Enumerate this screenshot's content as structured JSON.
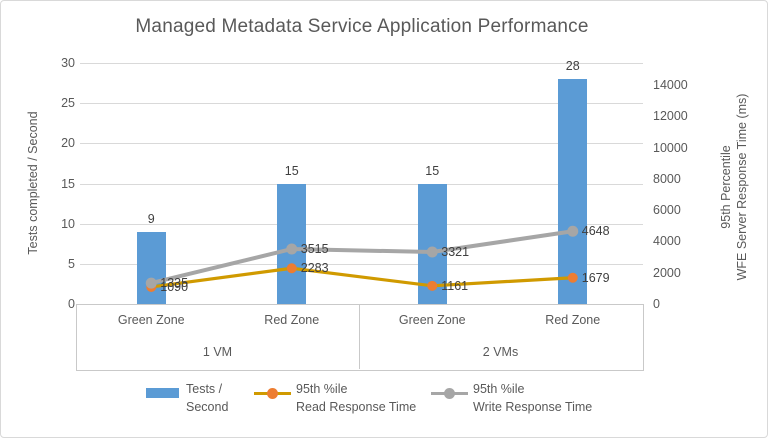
{
  "chart_data": {
    "type": "combo",
    "title": "Managed Metadata Service Application Performance",
    "ylabel_left": "Tests completed / Second",
    "ylabel_right_lines": [
      "95th Percentile",
      "WFE Server Response Time (ms)"
    ],
    "ylim_left": [
      0,
      30
    ],
    "yticks_left": [
      0,
      5,
      10,
      15,
      20,
      25,
      30
    ],
    "ylim_right": [
      0,
      15400
    ],
    "yticks_right": [
      0,
      2000,
      4000,
      6000,
      8000,
      10000,
      12000,
      14000
    ],
    "grid": "horizontal",
    "legend_position": "bottom",
    "category_groups": [
      {
        "label": "1 VM",
        "categories": [
          "Green Zone",
          "Red Zone"
        ]
      },
      {
        "label": "2 VMs",
        "categories": [
          "Green Zone",
          "Red Zone"
        ]
      }
    ],
    "series": [
      {
        "name": "Tests / Second",
        "type": "bar",
        "axis": "left",
        "color": "#5B9BD5",
        "values": [
          9,
          15,
          15,
          28
        ]
      },
      {
        "name": "95th %ile Read Response Time",
        "type": "line",
        "axis": "right",
        "color": "#D09A00",
        "marker_color": "#ED7D31",
        "values": [
          1090,
          2283,
          1161,
          1679
        ]
      },
      {
        "name": "95th %ile Write Response Time",
        "type": "line",
        "axis": "right",
        "color": "#A6A6A6",
        "marker_color": "#A6A6A6",
        "values": [
          1335,
          3515,
          3321,
          4648
        ]
      }
    ],
    "legend_entries": [
      {
        "swatch": "bar",
        "color": "#5B9BD5",
        "lines": [
          "Tests /",
          "Second"
        ]
      },
      {
        "swatch": "line-marker",
        "color": "#D09A00",
        "marker_color": "#ED7D31",
        "lines": [
          "95th %ile",
          "Read Response Time"
        ]
      },
      {
        "swatch": "line-marker",
        "color": "#A6A6A6",
        "marker_color": "#A6A6A6",
        "lines": [
          "95th %ile",
          "Write Response Time"
        ]
      }
    ],
    "colors": {
      "text": "#595959",
      "data_label": "#404040",
      "gridline": "#D9D9D9",
      "axis_box": "#C9C9C9",
      "background": "#FFFFFF"
    }
  }
}
